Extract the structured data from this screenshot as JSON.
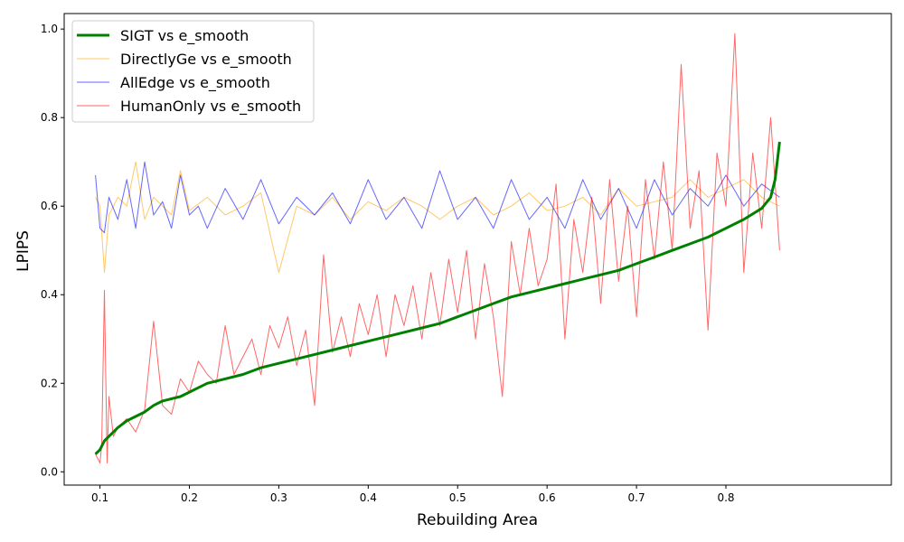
{
  "chart_data": {
    "type": "line",
    "xlabel": "Rebuilding Area",
    "ylabel": "LPIPS",
    "xlim": [
      0.06,
      0.985
    ],
    "ylim": [
      -0.03,
      1.035
    ],
    "xticks": [
      0.1,
      0.2,
      0.3,
      0.4,
      0.5,
      0.6,
      0.7,
      0.8
    ],
    "xtick_labels": [
      "0.1",
      "0.2",
      "0.3",
      "0.4",
      "0.5",
      "0.6",
      "0.7",
      "0.8"
    ],
    "yticks": [
      0.0,
      0.2,
      0.4,
      0.6,
      0.8,
      1.0
    ],
    "ytick_labels": [
      "0.0",
      "0.2",
      "0.4",
      "0.6",
      "0.8",
      "1.0"
    ],
    "grid": false,
    "legend_position": "top-left",
    "series": [
      {
        "name": "SIGT vs e_smooth",
        "color": "#008000",
        "x": [
          0.095,
          0.1,
          0.105,
          0.11,
          0.12,
          0.13,
          0.14,
          0.15,
          0.16,
          0.17,
          0.18,
          0.19,
          0.2,
          0.21,
          0.22,
          0.24,
          0.26,
          0.28,
          0.3,
          0.32,
          0.34,
          0.36,
          0.38,
          0.4,
          0.42,
          0.44,
          0.46,
          0.48,
          0.5,
          0.52,
          0.54,
          0.56,
          0.58,
          0.6,
          0.62,
          0.64,
          0.66,
          0.68,
          0.7,
          0.72,
          0.74,
          0.76,
          0.78,
          0.8,
          0.82,
          0.84,
          0.85,
          0.855,
          0.86
        ],
        "y": [
          0.04,
          0.05,
          0.07,
          0.08,
          0.1,
          0.115,
          0.125,
          0.135,
          0.15,
          0.16,
          0.165,
          0.17,
          0.18,
          0.19,
          0.2,
          0.21,
          0.22,
          0.235,
          0.245,
          0.255,
          0.265,
          0.275,
          0.285,
          0.295,
          0.305,
          0.315,
          0.325,
          0.335,
          0.35,
          0.365,
          0.38,
          0.395,
          0.405,
          0.415,
          0.425,
          0.435,
          0.445,
          0.455,
          0.47,
          0.485,
          0.5,
          0.515,
          0.53,
          0.55,
          0.57,
          0.595,
          0.62,
          0.66,
          0.745
        ]
      },
      {
        "name": "DirectlyGe vs e_smooth",
        "color": "#ffa500",
        "x": [
          0.095,
          0.1,
          0.105,
          0.11,
          0.12,
          0.13,
          0.14,
          0.15,
          0.16,
          0.17,
          0.18,
          0.19,
          0.2,
          0.22,
          0.24,
          0.26,
          0.28,
          0.3,
          0.32,
          0.34,
          0.36,
          0.38,
          0.4,
          0.42,
          0.44,
          0.46,
          0.48,
          0.5,
          0.52,
          0.54,
          0.56,
          0.58,
          0.6,
          0.62,
          0.64,
          0.66,
          0.68,
          0.7,
          0.72,
          0.74,
          0.76,
          0.78,
          0.8,
          0.82,
          0.84,
          0.86
        ],
        "y": [
          0.62,
          0.6,
          0.45,
          0.58,
          0.62,
          0.6,
          0.7,
          0.57,
          0.62,
          0.6,
          0.58,
          0.68,
          0.59,
          0.62,
          0.58,
          0.6,
          0.63,
          0.45,
          0.6,
          0.58,
          0.62,
          0.57,
          0.61,
          0.59,
          0.62,
          0.6,
          0.57,
          0.6,
          0.62,
          0.58,
          0.6,
          0.63,
          0.59,
          0.6,
          0.62,
          0.58,
          0.64,
          0.6,
          0.61,
          0.62,
          0.66,
          0.62,
          0.64,
          0.66,
          0.62,
          0.6
        ]
      },
      {
        "name": "AllEdge vs e_smooth",
        "color": "#0000ff",
        "x": [
          0.095,
          0.1,
          0.105,
          0.11,
          0.12,
          0.13,
          0.14,
          0.15,
          0.16,
          0.17,
          0.18,
          0.19,
          0.2,
          0.21,
          0.22,
          0.24,
          0.26,
          0.28,
          0.3,
          0.32,
          0.34,
          0.36,
          0.38,
          0.4,
          0.42,
          0.44,
          0.46,
          0.48,
          0.5,
          0.52,
          0.54,
          0.56,
          0.58,
          0.6,
          0.62,
          0.64,
          0.66,
          0.68,
          0.7,
          0.72,
          0.74,
          0.76,
          0.78,
          0.8,
          0.82,
          0.84,
          0.86
        ],
        "y": [
          0.67,
          0.55,
          0.54,
          0.62,
          0.57,
          0.66,
          0.55,
          0.7,
          0.58,
          0.61,
          0.55,
          0.67,
          0.58,
          0.6,
          0.55,
          0.64,
          0.57,
          0.66,
          0.56,
          0.62,
          0.58,
          0.63,
          0.56,
          0.66,
          0.57,
          0.62,
          0.55,
          0.68,
          0.57,
          0.62,
          0.55,
          0.66,
          0.57,
          0.62,
          0.55,
          0.66,
          0.57,
          0.64,
          0.55,
          0.66,
          0.58,
          0.64,
          0.6,
          0.67,
          0.6,
          0.65,
          0.62
        ]
      },
      {
        "name": "HumanOnly vs e_smooth",
        "color": "#ff0000",
        "x": [
          0.095,
          0.1,
          0.102,
          0.105,
          0.108,
          0.11,
          0.115,
          0.12,
          0.13,
          0.14,
          0.15,
          0.16,
          0.17,
          0.18,
          0.19,
          0.2,
          0.21,
          0.22,
          0.23,
          0.24,
          0.25,
          0.26,
          0.27,
          0.28,
          0.29,
          0.3,
          0.31,
          0.32,
          0.33,
          0.34,
          0.35,
          0.36,
          0.37,
          0.38,
          0.39,
          0.4,
          0.41,
          0.42,
          0.43,
          0.44,
          0.45,
          0.46,
          0.47,
          0.48,
          0.49,
          0.5,
          0.51,
          0.52,
          0.53,
          0.54,
          0.55,
          0.56,
          0.57,
          0.58,
          0.59,
          0.6,
          0.61,
          0.62,
          0.63,
          0.64,
          0.65,
          0.66,
          0.67,
          0.68,
          0.69,
          0.7,
          0.71,
          0.72,
          0.73,
          0.74,
          0.75,
          0.76,
          0.77,
          0.78,
          0.79,
          0.8,
          0.81,
          0.82,
          0.83,
          0.84,
          0.85,
          0.86
        ],
        "y": [
          0.04,
          0.02,
          0.06,
          0.41,
          0.02,
          0.17,
          0.08,
          0.1,
          0.12,
          0.09,
          0.14,
          0.34,
          0.15,
          0.13,
          0.21,
          0.18,
          0.25,
          0.22,
          0.2,
          0.33,
          0.22,
          0.26,
          0.3,
          0.22,
          0.33,
          0.28,
          0.35,
          0.24,
          0.32,
          0.15,
          0.49,
          0.27,
          0.35,
          0.26,
          0.38,
          0.31,
          0.4,
          0.26,
          0.4,
          0.33,
          0.42,
          0.3,
          0.45,
          0.33,
          0.48,
          0.36,
          0.5,
          0.3,
          0.47,
          0.35,
          0.17,
          0.52,
          0.4,
          0.55,
          0.42,
          0.48,
          0.65,
          0.3,
          0.57,
          0.45,
          0.62,
          0.38,
          0.66,
          0.43,
          0.6,
          0.35,
          0.66,
          0.48,
          0.7,
          0.5,
          0.92,
          0.55,
          0.68,
          0.32,
          0.72,
          0.6,
          0.99,
          0.45,
          0.72,
          0.55,
          0.8,
          0.5
        ]
      }
    ]
  }
}
